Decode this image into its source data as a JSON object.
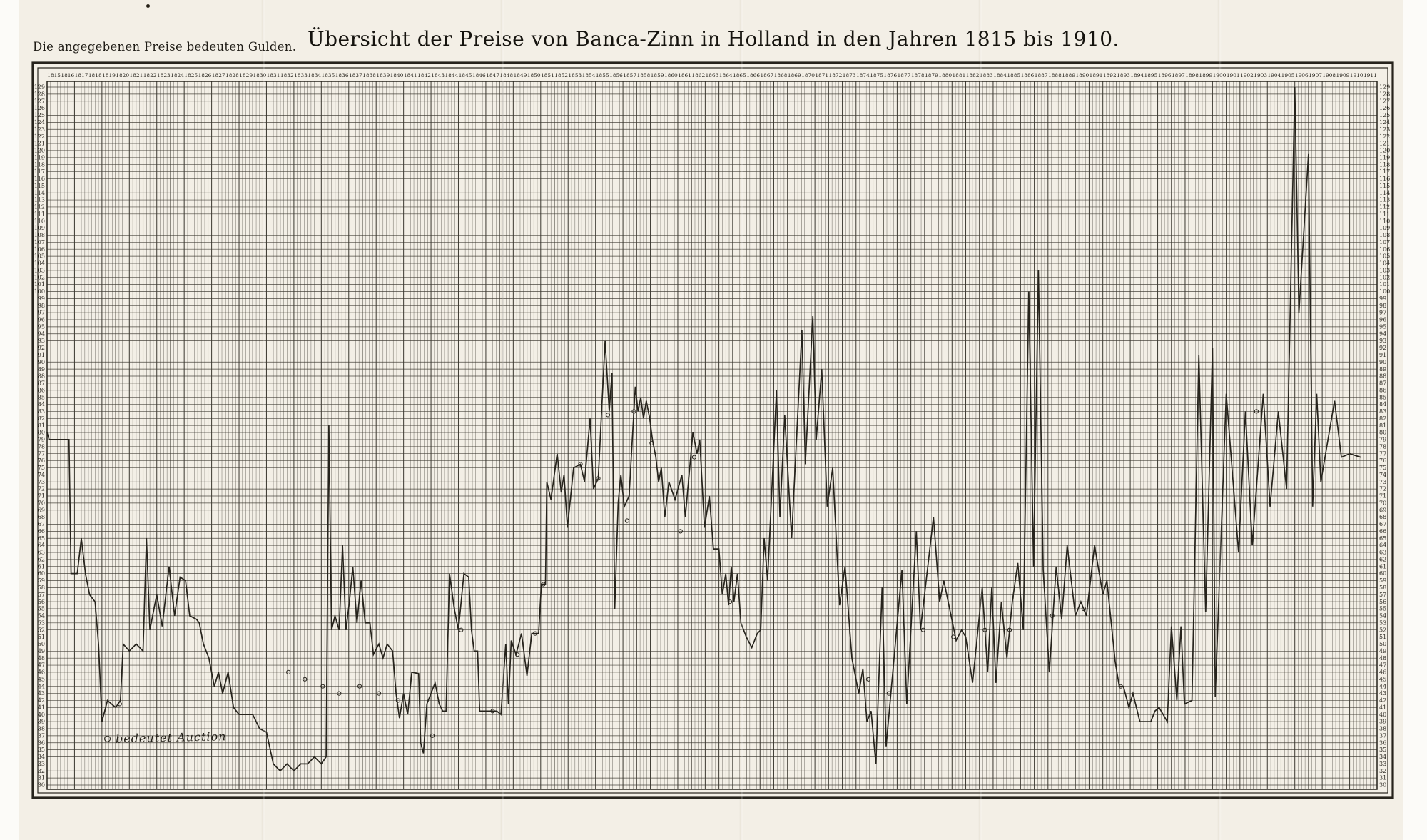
{
  "page": {
    "note": "Die angegebenen Preise bedeuten Gulden.",
    "title": "Übersicht der Preise von Banca-Zinn in Holland in den Jahren 1815 bis 1910.",
    "marker_legend_text": "bedeutet Auction"
  },
  "chart_data": {
    "type": "line",
    "title": "Übersicht der Preise von Banca-Zinn in Holland in den Jahren 1815 bis 1910",
    "unit": "Gulden",
    "legend": [
      {
        "symbol": "circle",
        "meaning": "bedeutet Auction"
      }
    ],
    "x_axis": {
      "start_year": 1815,
      "end_year": 1911,
      "label_every_year": true,
      "subdivisions_per_year": 4
    },
    "y_axis": {
      "min": 30,
      "max": 129,
      "step": 1,
      "labels_both_sides": true
    },
    "ink_color": "#26231c",
    "grid_color": "#3a372f",
    "paper_color": "#f3efe6",
    "series": [
      {
        "name": "Preis von Banca-Zinn (Gulden)",
        "points": [
          [
            1815,
            80
          ],
          [
            1815.15,
            79
          ],
          [
            1816.6,
            79
          ],
          [
            1816.75,
            60
          ],
          [
            1817.2,
            60
          ],
          [
            1817.5,
            65
          ],
          [
            1817.8,
            60
          ],
          [
            1818.1,
            57
          ],
          [
            1818.5,
            56
          ],
          [
            1818.75,
            50
          ],
          [
            1819,
            39
          ],
          [
            1819.4,
            42
          ],
          [
            1820,
            41
          ],
          [
            1820.35,
            42
          ],
          [
            1820.55,
            50
          ],
          [
            1821,
            49
          ],
          [
            1821.5,
            50
          ],
          [
            1822,
            49
          ],
          [
            1822.25,
            65
          ],
          [
            1822.5,
            52
          ],
          [
            1823,
            57
          ],
          [
            1823.4,
            52.5
          ],
          [
            1823.9,
            61
          ],
          [
            1824.3,
            54
          ],
          [
            1824.7,
            59.5
          ],
          [
            1825.1,
            59
          ],
          [
            1825.4,
            54
          ],
          [
            1825.9,
            53.5
          ],
          [
            1826.1,
            53
          ],
          [
            1826.4,
            50
          ],
          [
            1826.8,
            48
          ],
          [
            1827.2,
            44
          ],
          [
            1827.5,
            46
          ],
          [
            1827.8,
            43
          ],
          [
            1828.2,
            46
          ],
          [
            1828.6,
            41
          ],
          [
            1829,
            40
          ],
          [
            1830,
            40
          ],
          [
            1830.5,
            38
          ],
          [
            1831,
            37.5
          ],
          [
            1831.5,
            33
          ],
          [
            1832,
            32
          ],
          [
            1832.5,
            33
          ],
          [
            1833,
            32
          ],
          [
            1833.5,
            33
          ],
          [
            1834,
            33
          ],
          [
            1834.5,
            34
          ],
          [
            1835,
            33
          ],
          [
            1835.35,
            34
          ],
          [
            1835.55,
            81
          ],
          [
            1835.75,
            52
          ],
          [
            1836,
            54
          ],
          [
            1836.3,
            52
          ],
          [
            1836.55,
            64
          ],
          [
            1836.8,
            52
          ],
          [
            1837.05,
            56
          ],
          [
            1837.3,
            61
          ],
          [
            1837.6,
            53
          ],
          [
            1837.9,
            59
          ],
          [
            1838.2,
            53
          ],
          [
            1838.55,
            53
          ],
          [
            1838.8,
            48.5
          ],
          [
            1839.2,
            50
          ],
          [
            1839.5,
            48
          ],
          [
            1839.8,
            50
          ],
          [
            1840.2,
            49
          ],
          [
            1840.45,
            43
          ],
          [
            1840.7,
            39.5
          ],
          [
            1841,
            43
          ],
          [
            1841.3,
            40
          ],
          [
            1841.6,
            46
          ],
          [
            1842.1,
            45.8
          ],
          [
            1842.25,
            36
          ],
          [
            1842.45,
            34.5
          ],
          [
            1842.7,
            41.5
          ],
          [
            1843.3,
            44.5
          ],
          [
            1843.6,
            41.5
          ],
          [
            1843.85,
            40.5
          ],
          [
            1844.1,
            40.5
          ],
          [
            1844.35,
            60
          ],
          [
            1844.7,
            55
          ],
          [
            1845,
            52
          ],
          [
            1845.4,
            60
          ],
          [
            1845.75,
            59.5
          ],
          [
            1845.95,
            52
          ],
          [
            1846.15,
            49
          ],
          [
            1846.4,
            49
          ],
          [
            1846.55,
            40.5
          ],
          [
            1847.8,
            40.5
          ],
          [
            1848.1,
            40
          ],
          [
            1848.45,
            50
          ],
          [
            1848.65,
            41.5
          ],
          [
            1848.85,
            50.5
          ],
          [
            1849.2,
            48.5
          ],
          [
            1849.6,
            51.5
          ],
          [
            1850,
            45.5
          ],
          [
            1850.35,
            51.5
          ],
          [
            1850.85,
            51.5
          ],
          [
            1851.05,
            58.5
          ],
          [
            1851.35,
            58.5
          ],
          [
            1851.45,
            73
          ],
          [
            1851.75,
            70.5
          ],
          [
            1852.2,
            77
          ],
          [
            1852.5,
            71.5
          ],
          [
            1852.7,
            74
          ],
          [
            1852.95,
            66.5
          ],
          [
            1853.4,
            75
          ],
          [
            1853.9,
            75.5
          ],
          [
            1854.2,
            73
          ],
          [
            1854.6,
            82
          ],
          [
            1854.85,
            72
          ],
          [
            1855.2,
            73.5
          ],
          [
            1855.7,
            93
          ],
          [
            1856,
            83
          ],
          [
            1856.2,
            88.5
          ],
          [
            1856.4,
            55
          ],
          [
            1856.65,
            70
          ],
          [
            1856.85,
            74
          ],
          [
            1857.1,
            69.5
          ],
          [
            1857.45,
            71
          ],
          [
            1857.9,
            86.5
          ],
          [
            1858.1,
            83
          ],
          [
            1858.3,
            85
          ],
          [
            1858.5,
            82
          ],
          [
            1858.7,
            84.5
          ],
          [
            1858.95,
            82
          ],
          [
            1859.15,
            79
          ],
          [
            1859.4,
            76.5
          ],
          [
            1859.6,
            73
          ],
          [
            1859.8,
            75
          ],
          [
            1860.05,
            68
          ],
          [
            1860.35,
            73
          ],
          [
            1860.8,
            70.5
          ],
          [
            1861.3,
            74
          ],
          [
            1861.55,
            68
          ],
          [
            1862.1,
            80
          ],
          [
            1862.4,
            77
          ],
          [
            1862.6,
            79
          ],
          [
            1862.95,
            66.5
          ],
          [
            1863.3,
            71
          ],
          [
            1863.6,
            63.5
          ],
          [
            1864,
            63.5
          ],
          [
            1864.25,
            57
          ],
          [
            1864.5,
            60
          ],
          [
            1864.7,
            55.5
          ],
          [
            1864.9,
            61
          ],
          [
            1865.1,
            56
          ],
          [
            1865.35,
            60
          ],
          [
            1865.6,
            53
          ],
          [
            1866,
            51
          ],
          [
            1866.4,
            49.5
          ],
          [
            1866.8,
            51.5
          ],
          [
            1867.05,
            52
          ],
          [
            1867.3,
            65
          ],
          [
            1867.55,
            59
          ],
          [
            1868.2,
            86
          ],
          [
            1868.45,
            68
          ],
          [
            1868.8,
            82.5
          ],
          [
            1869.3,
            65
          ],
          [
            1870.05,
            94.5
          ],
          [
            1870.3,
            75.5
          ],
          [
            1870.85,
            96.5
          ],
          [
            1871.1,
            79
          ],
          [
            1871.5,
            89
          ],
          [
            1871.9,
            69.5
          ],
          [
            1872.3,
            75
          ],
          [
            1872.8,
            55.5
          ],
          [
            1873.2,
            61
          ],
          [
            1873.7,
            48
          ],
          [
            1874.2,
            43
          ],
          [
            1874.5,
            46.5
          ],
          [
            1874.8,
            39
          ],
          [
            1875.1,
            40.5
          ],
          [
            1875.45,
            33
          ],
          [
            1875.9,
            58
          ],
          [
            1876.2,
            35.5
          ],
          [
            1877.35,
            60.5
          ],
          [
            1877.7,
            41.5
          ],
          [
            1878.4,
            66
          ],
          [
            1878.7,
            52
          ],
          [
            1879.65,
            68
          ],
          [
            1880.1,
            56
          ],
          [
            1880.4,
            59
          ],
          [
            1881.3,
            50.5
          ],
          [
            1881.7,
            52
          ],
          [
            1882,
            51
          ],
          [
            1882.5,
            44.5
          ],
          [
            1883.2,
            58
          ],
          [
            1883.6,
            46
          ],
          [
            1883.9,
            58
          ],
          [
            1884.2,
            44.5
          ],
          [
            1884.6,
            56
          ],
          [
            1885,
            48
          ],
          [
            1885.4,
            56
          ],
          [
            1885.8,
            61.5
          ],
          [
            1886.2,
            52
          ],
          [
            1886.6,
            100
          ],
          [
            1886.95,
            61
          ],
          [
            1887.3,
            103
          ],
          [
            1887.65,
            60.5
          ],
          [
            1888.1,
            46
          ],
          [
            1888.6,
            61
          ],
          [
            1889,
            53.5
          ],
          [
            1889.4,
            64
          ],
          [
            1890,
            54
          ],
          [
            1890.4,
            56
          ],
          [
            1890.8,
            54
          ],
          [
            1891.4,
            64
          ],
          [
            1892,
            57
          ],
          [
            1892.3,
            59
          ],
          [
            1892.9,
            47.5
          ],
          [
            1893.2,
            44
          ],
          [
            1893.5,
            44
          ],
          [
            1893.9,
            41
          ],
          [
            1894.2,
            43
          ],
          [
            1894.7,
            39
          ],
          [
            1895.5,
            39
          ],
          [
            1895.8,
            40.5
          ],
          [
            1896.1,
            41
          ],
          [
            1896.7,
            39
          ],
          [
            1897,
            52.5
          ],
          [
            1897.4,
            42
          ],
          [
            1897.7,
            52.5
          ],
          [
            1897.95,
            41.5
          ],
          [
            1898.5,
            42
          ],
          [
            1899,
            91
          ],
          [
            1899.5,
            54.5
          ],
          [
            1900,
            92
          ],
          [
            1900.2,
            42.5
          ],
          [
            1901,
            85.5
          ],
          [
            1901.9,
            63
          ],
          [
            1902.4,
            83
          ],
          [
            1902.9,
            64
          ],
          [
            1903.7,
            85.5
          ],
          [
            1904.2,
            69.5
          ],
          [
            1904.8,
            83
          ],
          [
            1905.4,
            72
          ],
          [
            1906,
            129
          ],
          [
            1906.3,
            97
          ],
          [
            1907,
            119.5
          ],
          [
            1907.3,
            69.5
          ],
          [
            1907.6,
            85.5
          ],
          [
            1907.9,
            73
          ],
          [
            1908.9,
            84.5
          ],
          [
            1909.4,
            76.5
          ],
          [
            1910,
            77
          ],
          [
            1910.8,
            76.5
          ]
        ]
      }
    ],
    "auction_markers": [
      [
        1820.3,
        41.5
      ],
      [
        1832.6,
        46
      ],
      [
        1833.8,
        45
      ],
      [
        1835.1,
        44
      ],
      [
        1836.3,
        43
      ],
      [
        1837.8,
        44
      ],
      [
        1839.2,
        43
      ],
      [
        1840.6,
        42
      ],
      [
        1843.1,
        37
      ],
      [
        1845.2,
        52
      ],
      [
        1847.5,
        40.5
      ],
      [
        1849.3,
        48.5
      ],
      [
        1850.6,
        51.5
      ],
      [
        1851.2,
        58.5
      ],
      [
        1853.9,
        75.5
      ],
      [
        1855.2,
        73.5
      ],
      [
        1855.9,
        82.5
      ],
      [
        1857.3,
        67.5
      ],
      [
        1857.8,
        83
      ],
      [
        1859.1,
        78.5
      ],
      [
        1861.2,
        66
      ],
      [
        1862.2,
        76.5
      ],
      [
        1864.8,
        56
      ],
      [
        1874.9,
        45
      ],
      [
        1876.4,
        43
      ],
      [
        1878.9,
        52
      ],
      [
        1881.1,
        51
      ],
      [
        1883.4,
        52
      ],
      [
        1885.2,
        52
      ],
      [
        1888.3,
        54
      ],
      [
        1890.6,
        55
      ],
      [
        1893.3,
        44
      ],
      [
        1903.2,
        83
      ]
    ]
  }
}
